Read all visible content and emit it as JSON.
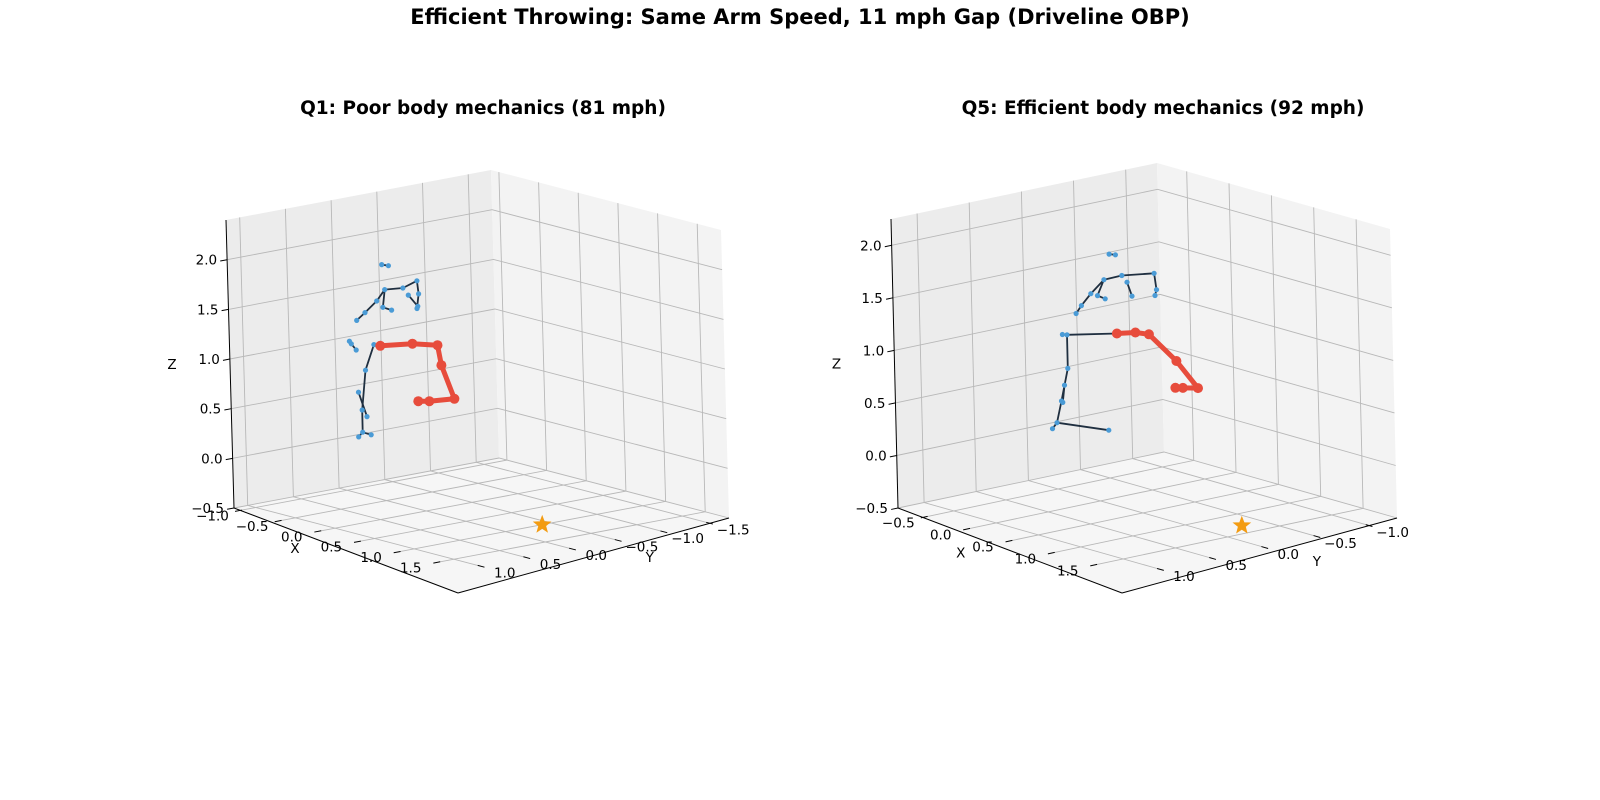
{
  "title": "Efficient Throwing: Same Arm Speed, 11 mph Gap (Driveline OBP)",
  "colors": {
    "skeleton_line": "#1f2f40",
    "joint": "#4a9bd6",
    "throwing_arm": "#e74c3c",
    "release_star": "#f39c12",
    "pane_back": "#ececec",
    "pane_side": "#f3f3f3",
    "pane_floor": "#f6f6f6",
    "grid": "#b8b8b8"
  },
  "chart_data": [
    {
      "type": "scatter",
      "projection": "3d",
      "title": "Q1: Poor body mechanics (81 mph)",
      "xlabel": "X",
      "ylabel": "Y",
      "zlabel": "Z",
      "xlim": [
        -1.1,
        1.8
      ],
      "ylim": [
        -1.75,
        1.15
      ],
      "zlim": [
        -0.5,
        2.4
      ],
      "xticks": [
        -1.0,
        -0.5,
        0.0,
        0.5,
        1.0,
        1.5
      ],
      "yticks": [
        -1.5,
        -1.0,
        -0.5,
        0.0,
        0.5,
        1.0
      ],
      "zticks": [
        -0.5,
        0.0,
        0.5,
        1.0,
        1.5,
        2.0
      ],
      "xticklabels": [
        "−1.0",
        "−0.5",
        "0.0",
        "0.5",
        "1.0",
        "1.5"
      ],
      "yticklabels": [
        "−1.5",
        "−1.0",
        "−0.5",
        "0.0",
        "0.5",
        "1.0"
      ],
      "zticklabels": [
        "−0.5",
        "0.0",
        "0.5",
        "1.0",
        "1.5",
        "2.0"
      ],
      "grid": true,
      "release_point": {
        "x": 1.0,
        "y": -0.4,
        "z": -0.5
      },
      "series": [
        {
          "role": "skeleton",
          "segments": [
            [
              [
                -0.36,
                0.03,
                1.9
              ],
              [
                -0.48,
                0.0,
                1.88
              ]
            ],
            [
              [
                -0.26,
                -0.19,
                1.73
              ],
              [
                -0.36,
                -0.29,
                1.56
              ]
            ],
            [
              [
                -0.36,
                -0.29,
                1.56
              ],
              [
                -0.35,
                -0.26,
                1.42
              ]
            ],
            [
              [
                -0.26,
                -0.19,
                1.73
              ],
              [
                -0.3,
                -0.07,
                1.67
              ]
            ],
            [
              [
                -0.3,
                -0.07,
                1.67
              ],
              [
                -0.38,
                0.06,
                1.66
              ]
            ],
            [
              [
                -0.38,
                0.06,
                1.66
              ],
              [
                -0.44,
                0.1,
                1.54
              ]
            ],
            [
              [
                -0.44,
                0.1,
                1.54
              ],
              [
                -0.51,
                0.17,
                1.42
              ]
            ],
            [
              [
                -0.51,
                0.17,
                1.42
              ],
              [
                -0.56,
                0.22,
                1.34
              ]
            ],
            [
              [
                -0.38,
                0.06,
                1.66
              ],
              [
                -0.34,
                0.12,
                1.5
              ]
            ],
            [
              [
                -0.34,
                0.12,
                1.5
              ],
              [
                -0.3,
                0.06,
                1.47
              ]
            ],
            [
              [
                -0.27,
                -0.1,
                1.6
              ],
              [
                -0.27,
                -0.2,
                1.47
              ]
            ],
            [
              [
                -0.46,
                0.32,
                1.08
              ],
              [
                -0.52,
                0.32,
                1.13
              ]
            ],
            [
              [
                -0.52,
                0.32,
                1.13
              ],
              [
                -0.52,
                0.34,
                1.16
              ]
            ],
            [
              [
                -0.2,
                0.28,
                1.17
              ],
              [
                -0.35,
                0.22,
                1.14
              ]
            ],
            [
              [
                -0.35,
                0.22,
                1.14
              ],
              [
                -0.35,
                0.32,
                0.9
              ]
            ],
            [
              [
                -0.35,
                0.32,
                0.9
              ],
              [
                -0.37,
                0.35,
                0.5
              ]
            ],
            [
              [
                -0.37,
                0.35,
                0.5
              ],
              [
                -0.36,
                0.36,
                0.28
              ]
            ],
            [
              [
                -0.36,
                0.36,
                0.28
              ],
              [
                -0.39,
                0.38,
                0.23
              ]
            ],
            [
              [
                -0.36,
                0.36,
                0.28
              ],
              [
                -0.3,
                0.32,
                0.26
              ]
            ],
            [
              [
                -0.33,
                0.42,
                0.7
              ],
              [
                -0.3,
                0.36,
                0.45
              ]
            ]
          ],
          "joints": [
            [
              -0.36,
              0.03,
              1.9
            ],
            [
              -0.48,
              0.0,
              1.88
            ],
            [
              -0.26,
              -0.19,
              1.73
            ],
            [
              -0.36,
              -0.29,
              1.56
            ],
            [
              -0.35,
              -0.26,
              1.42
            ],
            [
              -0.3,
              -0.07,
              1.67
            ],
            [
              -0.38,
              0.06,
              1.66
            ],
            [
              -0.44,
              0.1,
              1.54
            ],
            [
              -0.51,
              0.17,
              1.42
            ],
            [
              -0.56,
              0.22,
              1.34
            ],
            [
              -0.34,
              0.12,
              1.5
            ],
            [
              -0.3,
              0.06,
              1.47
            ],
            [
              -0.27,
              -0.1,
              1.6
            ],
            [
              -0.27,
              -0.2,
              1.47
            ],
            [
              -0.46,
              0.32,
              1.08
            ],
            [
              -0.52,
              0.32,
              1.13
            ],
            [
              -0.52,
              0.34,
              1.16
            ],
            [
              -0.35,
              0.22,
              1.14
            ],
            [
              -0.35,
              0.32,
              0.9
            ],
            [
              -0.37,
              0.35,
              0.5
            ],
            [
              -0.36,
              0.36,
              0.28
            ],
            [
              -0.39,
              0.38,
              0.23
            ],
            [
              -0.3,
              0.32,
              0.26
            ],
            [
              -0.33,
              0.42,
              0.7
            ],
            [
              -0.3,
              0.36,
              0.45
            ]
          ]
        },
        {
          "role": "throwing_arm",
          "points": [
            [
              -0.2,
              0.28,
              1.17
            ],
            [
              -0.06,
              0.05,
              1.18
            ],
            [
              0.06,
              -0.12,
              1.16
            ],
            [
              0.08,
              -0.14,
              0.96
            ],
            [
              0.14,
              -0.22,
              0.62
            ],
            [
              0.02,
              -0.05,
              0.6
            ],
            [
              -0.04,
              0.02,
              0.6
            ]
          ]
        }
      ]
    },
    {
      "type": "scatter",
      "projection": "3d",
      "title": "Q5: Efficient body mechanics (92 mph)",
      "xlabel": "X",
      "ylabel": "Y",
      "zlabel": "Z",
      "xlim": [
        -0.85,
        1.9
      ],
      "ylim": [
        -1.3,
        1.25
      ],
      "zlim": [
        -0.5,
        2.25
      ],
      "xticks": [
        -0.5,
        0.0,
        0.5,
        1.0,
        1.5
      ],
      "yticks": [
        -1.0,
        -0.5,
        0.0,
        0.5,
        1.0
      ],
      "zticks": [
        -0.5,
        0.0,
        0.5,
        1.0,
        1.5,
        2.0
      ],
      "xticklabels": [
        "−0.5",
        "0.0",
        "0.5",
        "1.0",
        "1.5"
      ],
      "yticklabels": [
        "−1.0",
        "−0.5",
        "0.0",
        "0.5",
        "1.0"
      ],
      "zticklabels": [
        "−0.5",
        "0.0",
        "0.5",
        "1.0",
        "1.5",
        "2.0"
      ],
      "grid": true,
      "release_point": {
        "x": 1.3,
        "y": -0.3,
        "z": -0.5
      },
      "series": [
        {
          "role": "skeleton",
          "segments": [
            [
              [
                0.0,
                -0.2,
                1.8
              ],
              [
                -0.1,
                -0.22,
                1.78
              ]
            ],
            [
              [
                0.18,
                -0.42,
                1.62
              ],
              [
                0.08,
                -0.52,
                1.42
              ]
            ],
            [
              [
                0.08,
                -0.52,
                1.42
              ],
              [
                0.06,
                -0.52,
                1.36
              ]
            ],
            [
              [
                0.18,
                -0.42,
                1.62
              ],
              [
                0.02,
                -0.24,
                1.6
              ]
            ],
            [
              [
                0.02,
                -0.24,
                1.6
              ],
              [
                -0.02,
                -0.1,
                1.58
              ]
            ],
            [
              [
                -0.02,
                -0.1,
                1.58
              ],
              [
                -0.08,
                -0.02,
                1.45
              ]
            ],
            [
              [
                -0.08,
                -0.02,
                1.45
              ],
              [
                -0.12,
                0.04,
                1.34
              ]
            ],
            [
              [
                -0.12,
                0.04,
                1.34
              ],
              [
                -0.16,
                0.06,
                1.26
              ]
            ],
            [
              [
                -0.02,
                -0.1,
                1.58
              ],
              [
                0.0,
                -0.02,
                1.45
              ]
            ],
            [
              [
                0.0,
                -0.02,
                1.45
              ],
              [
                0.04,
                -0.06,
                1.42
              ]
            ],
            [
              [
                0.08,
                -0.24,
                1.55
              ],
              [
                0.06,
                -0.3,
                1.4
              ]
            ],
            [
              [
                -0.1,
                0.2,
                1.1
              ],
              [
                -0.18,
                0.18,
                1.08
              ]
            ],
            [
              [
                0.12,
                -0.1,
                1.1
              ],
              [
                -0.1,
                0.2,
                1.1
              ]
            ],
            [
              [
                -0.1,
                0.2,
                1.1
              ],
              [
                -0.05,
                0.24,
                0.8
              ]
            ],
            [
              [
                -0.05,
                0.24,
                0.8
              ],
              [
                -0.06,
                0.3,
                0.5
              ]
            ],
            [
              [
                -0.06,
                0.3,
                0.5
              ],
              [
                -0.07,
                0.34,
                0.3
              ]
            ],
            [
              [
                -0.07,
                0.34,
                0.3
              ],
              [
                0.22,
                0.08,
                0.24
              ]
            ],
            [
              [
                -0.07,
                0.34,
                0.3
              ],
              [
                -0.1,
                0.36,
                0.24
              ]
            ],
            [
              [
                -0.02,
                0.3,
                0.66
              ],
              [
                -0.02,
                0.32,
                0.5
              ]
            ]
          ],
          "joints": [
            [
              0.0,
              -0.2,
              1.8
            ],
            [
              -0.1,
              -0.22,
              1.78
            ],
            [
              0.18,
              -0.42,
              1.62
            ],
            [
              0.08,
              -0.52,
              1.42
            ],
            [
              0.06,
              -0.52,
              1.36
            ],
            [
              0.02,
              -0.24,
              1.6
            ],
            [
              -0.02,
              -0.1,
              1.58
            ],
            [
              -0.08,
              -0.02,
              1.45
            ],
            [
              -0.12,
              0.04,
              1.34
            ],
            [
              -0.16,
              0.06,
              1.26
            ],
            [
              0.0,
              -0.02,
              1.45
            ],
            [
              0.04,
              -0.06,
              1.42
            ],
            [
              0.08,
              -0.24,
              1.55
            ],
            [
              0.06,
              -0.3,
              1.4
            ],
            [
              -0.1,
              0.2,
              1.1
            ],
            [
              -0.18,
              0.18,
              1.08
            ],
            [
              0.12,
              -0.1,
              1.1
            ],
            [
              -0.05,
              0.24,
              0.8
            ],
            [
              -0.06,
              0.3,
              0.5
            ],
            [
              -0.07,
              0.34,
              0.3
            ],
            [
              0.22,
              0.08,
              0.24
            ],
            [
              -0.1,
              0.36,
              0.24
            ],
            [
              -0.02,
              0.3,
              0.66
            ],
            [
              -0.02,
              0.32,
              0.5
            ]
          ]
        },
        {
          "role": "throwing_arm",
          "points": [
            [
              0.12,
              -0.1,
              1.1
            ],
            [
              0.24,
              -0.18,
              1.12
            ],
            [
              0.3,
              -0.26,
              1.1
            ],
            [
              0.42,
              -0.42,
              0.84
            ],
            [
              0.52,
              -0.54,
              0.58
            ],
            [
              0.44,
              -0.46,
              0.58
            ],
            [
              0.4,
              -0.42,
              0.58
            ]
          ]
        }
      ]
    }
  ]
}
